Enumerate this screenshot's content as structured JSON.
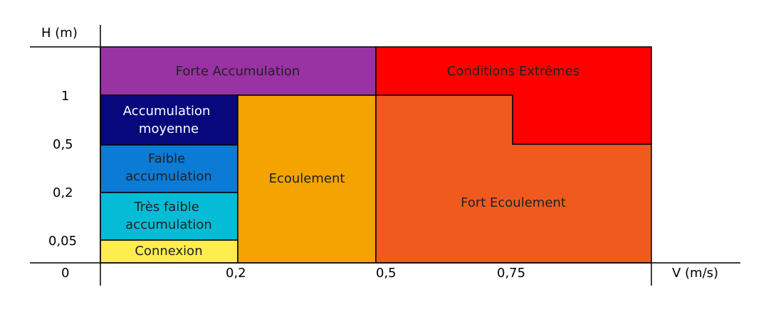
{
  "axes": {
    "y_label": "H (m)",
    "x_label": "V (m/s)",
    "origin_label": "0",
    "y_ticks": [
      "1",
      "0,5",
      "0,2",
      "0,05"
    ],
    "x_ticks": [
      "0,2",
      "0,5",
      "0,75"
    ]
  },
  "zones": [
    {
      "id": "forte-accumulation",
      "lines": [
        "Forte Accumulation"
      ],
      "color": "#9932a2",
      "text_color": "#222222"
    },
    {
      "id": "conditions-extremes",
      "lines": [
        "Conditions Extrêmes"
      ],
      "color": "#ff0000",
      "text_color": "#222222"
    },
    {
      "id": "accumulation-moyenne",
      "lines": [
        "Accumulation",
        "moyenne"
      ],
      "color": "#07087c",
      "text_color": "#ffffff"
    },
    {
      "id": "faible-accumulation",
      "lines": [
        "Faible",
        "accumulation"
      ],
      "color": "#0b7bd6",
      "text_color": "#222222"
    },
    {
      "id": "tres-faible-accumulation",
      "lines": [
        "Très faible",
        "accumulation"
      ],
      "color": "#05bcd6",
      "text_color": "#222222"
    },
    {
      "id": "connexion",
      "lines": [
        "Connexion"
      ],
      "color": "#ffec4f",
      "text_color": "#222222"
    },
    {
      "id": "ecoulement",
      "lines": [
        "Ecoulement"
      ],
      "color": "#f5a300",
      "text_color": "#222222"
    },
    {
      "id": "fort-ecoulement",
      "lines": [
        "Fort Ecoulement"
      ],
      "color": "#f15a1e",
      "text_color": "#222222"
    }
  ]
}
